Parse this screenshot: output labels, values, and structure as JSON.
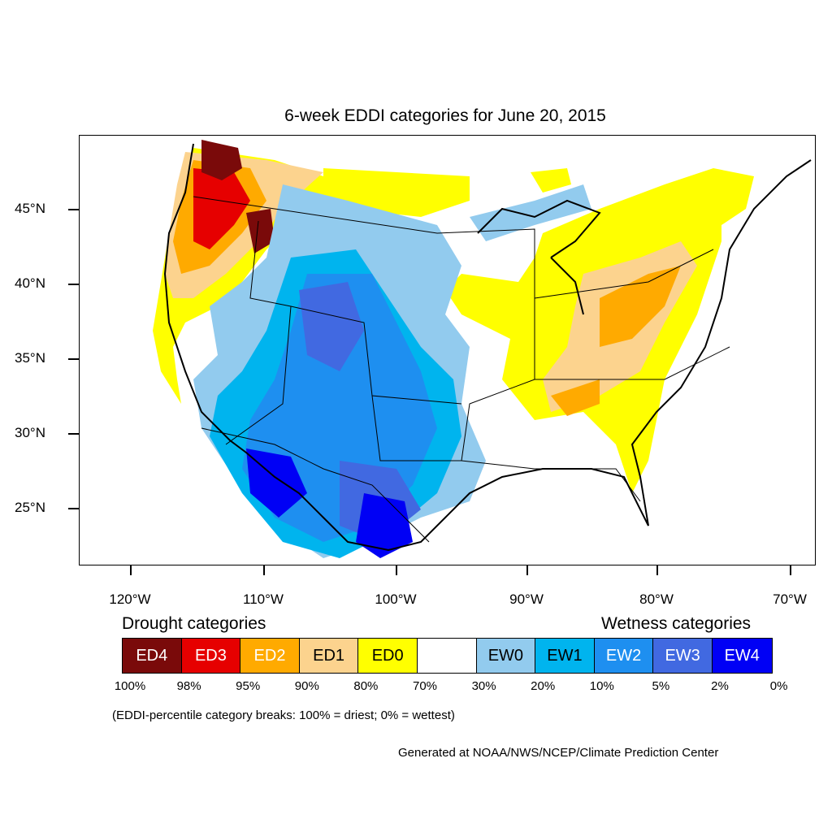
{
  "title": "6-week EDDI categories for June 20, 2015",
  "lat_labels": [
    "45°N",
    "40°N",
    "35°N",
    "30°N",
    "25°N"
  ],
  "lon_labels": [
    "120°W",
    "110°W",
    "100°W",
    "90°W",
    "80°W",
    "70°W"
  ],
  "legend": {
    "drought_heading": "Drought categories",
    "wetness_heading": "Wetness categories",
    "categories": [
      {
        "label": "ED4",
        "color": "#7a0a0a",
        "text_color": "#ffffff"
      },
      {
        "label": "ED3",
        "color": "#e60000",
        "text_color": "#ffffff"
      },
      {
        "label": "ED2",
        "color": "#ffaa00",
        "text_color": "#ffffff"
      },
      {
        "label": "ED1",
        "color": "#fcd38e",
        "text_color": "#000000"
      },
      {
        "label": "ED0",
        "color": "#ffff00",
        "text_color": "#000000"
      },
      {
        "label": "",
        "color": "#ffffff",
        "text_color": "#000000"
      },
      {
        "label": "EW0",
        "color": "#92cbee",
        "text_color": "#000000"
      },
      {
        "label": "EW1",
        "color": "#00b4ee",
        "text_color": "#000000"
      },
      {
        "label": "EW2",
        "color": "#1e8ff0",
        "text_color": "#ffffff"
      },
      {
        "label": "EW3",
        "color": "#4169e1",
        "text_color": "#ffffff"
      },
      {
        "label": "EW4",
        "color": "#0000f5",
        "text_color": "#ffffff"
      }
    ],
    "percent_breaks": [
      "100%",
      "98%",
      "95%",
      "90%",
      "80%",
      "70%",
      "30%",
      "20%",
      "10%",
      "5%",
      "2%",
      "0%"
    ]
  },
  "note": "(EDDI-percentile category breaks: 100% = driest; 0% = wettest)",
  "credit": "Generated at NOAA/NWS/NCEP/Climate Prediction Center"
}
